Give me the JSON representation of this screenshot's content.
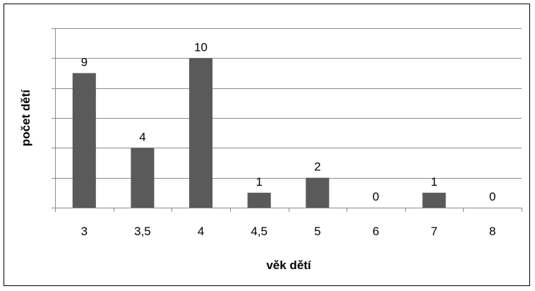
{
  "chart_data": {
    "type": "bar",
    "categories": [
      "3",
      "3,5",
      "4",
      "4,5",
      "5",
      "6",
      "7",
      "8"
    ],
    "values": [
      9,
      4,
      10,
      1,
      2,
      0,
      1,
      0
    ],
    "data_labels": [
      "9",
      "4",
      "10",
      "1",
      "2",
      "0",
      "1",
      "0"
    ],
    "xlabel": "věk dětí",
    "ylabel": "počet dětí",
    "ylim": [
      0,
      12
    ],
    "y_major_step": 2,
    "y_tick_labels_shown": false,
    "grid": "horizontal",
    "legend": "none",
    "bar_color": "#5a5a5a",
    "gridline_color": "#8c8c8c",
    "axis_color": "#8c8c8c"
  }
}
